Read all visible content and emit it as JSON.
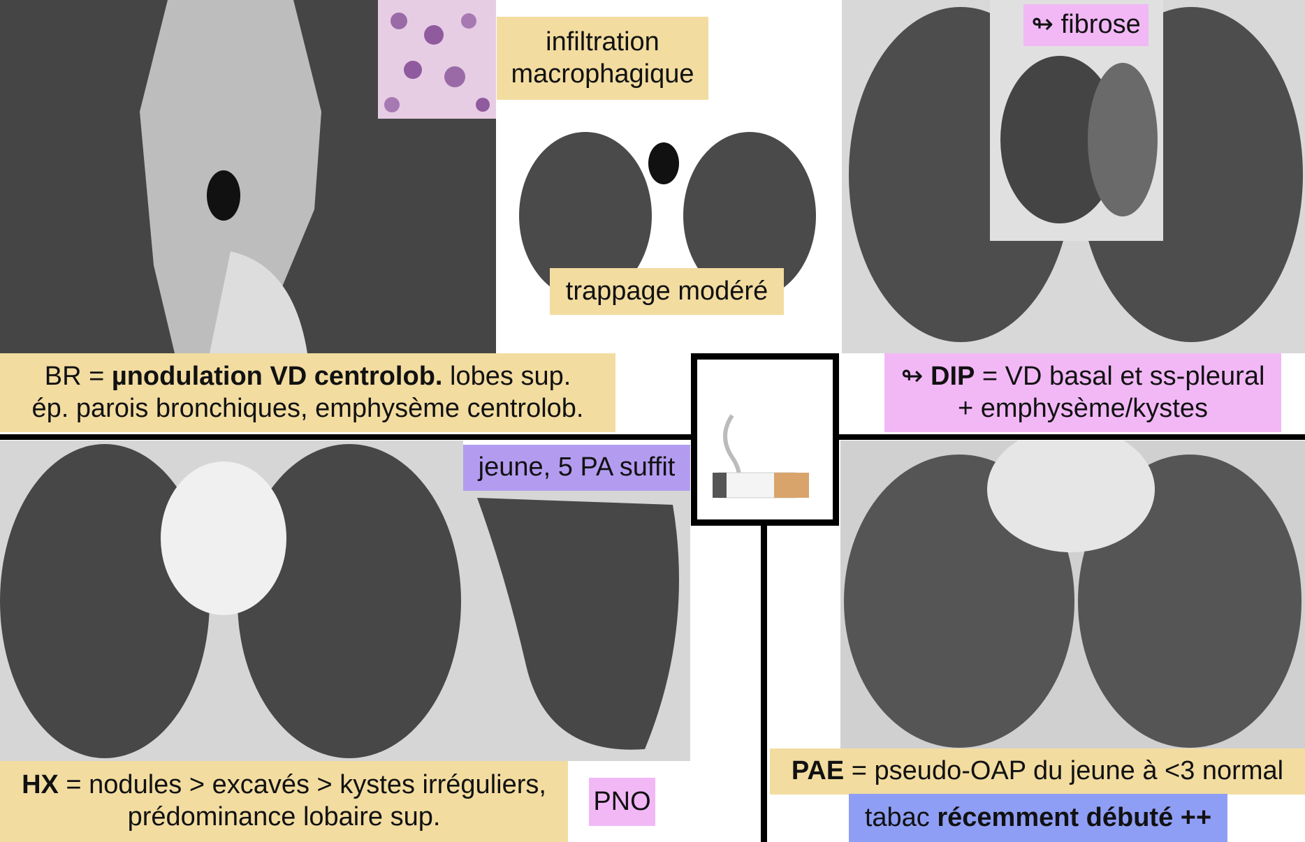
{
  "top_left": {
    "histology_label": [
      "infiltration",
      "macrophagique"
    ]
  },
  "top_center": {
    "label": "trappage modéré"
  },
  "top_right": {
    "inset_label": "↬ fibrose"
  },
  "br": {
    "line1": {
      "a": "BR = ",
      "b": "µnodulation VD centrolob.",
      "c": " lobes sup."
    },
    "line2": "ép. parois bronchiques, emphysème centrolob."
  },
  "dip": {
    "line1": {
      "a": "↬ ",
      "b": "DIP",
      "c": " = VD basal et ss-pleural"
    },
    "line2": "+ emphysème/kystes"
  },
  "hx_side": {
    "label": "jeune, 5 PA suffit",
    "pno": "PNO"
  },
  "hx": {
    "line1": {
      "a": "HX",
      "b": " = nodules > excavés > kystes irréguliers,"
    },
    "line2": "prédominance lobaire sup."
  },
  "pae": {
    "line1": {
      "a": "PAE",
      "b": " = pseudo-OAP du jeune à <3 normal"
    },
    "line2": {
      "a": "tabac ",
      "b": "récemment débuté ++"
    }
  }
}
